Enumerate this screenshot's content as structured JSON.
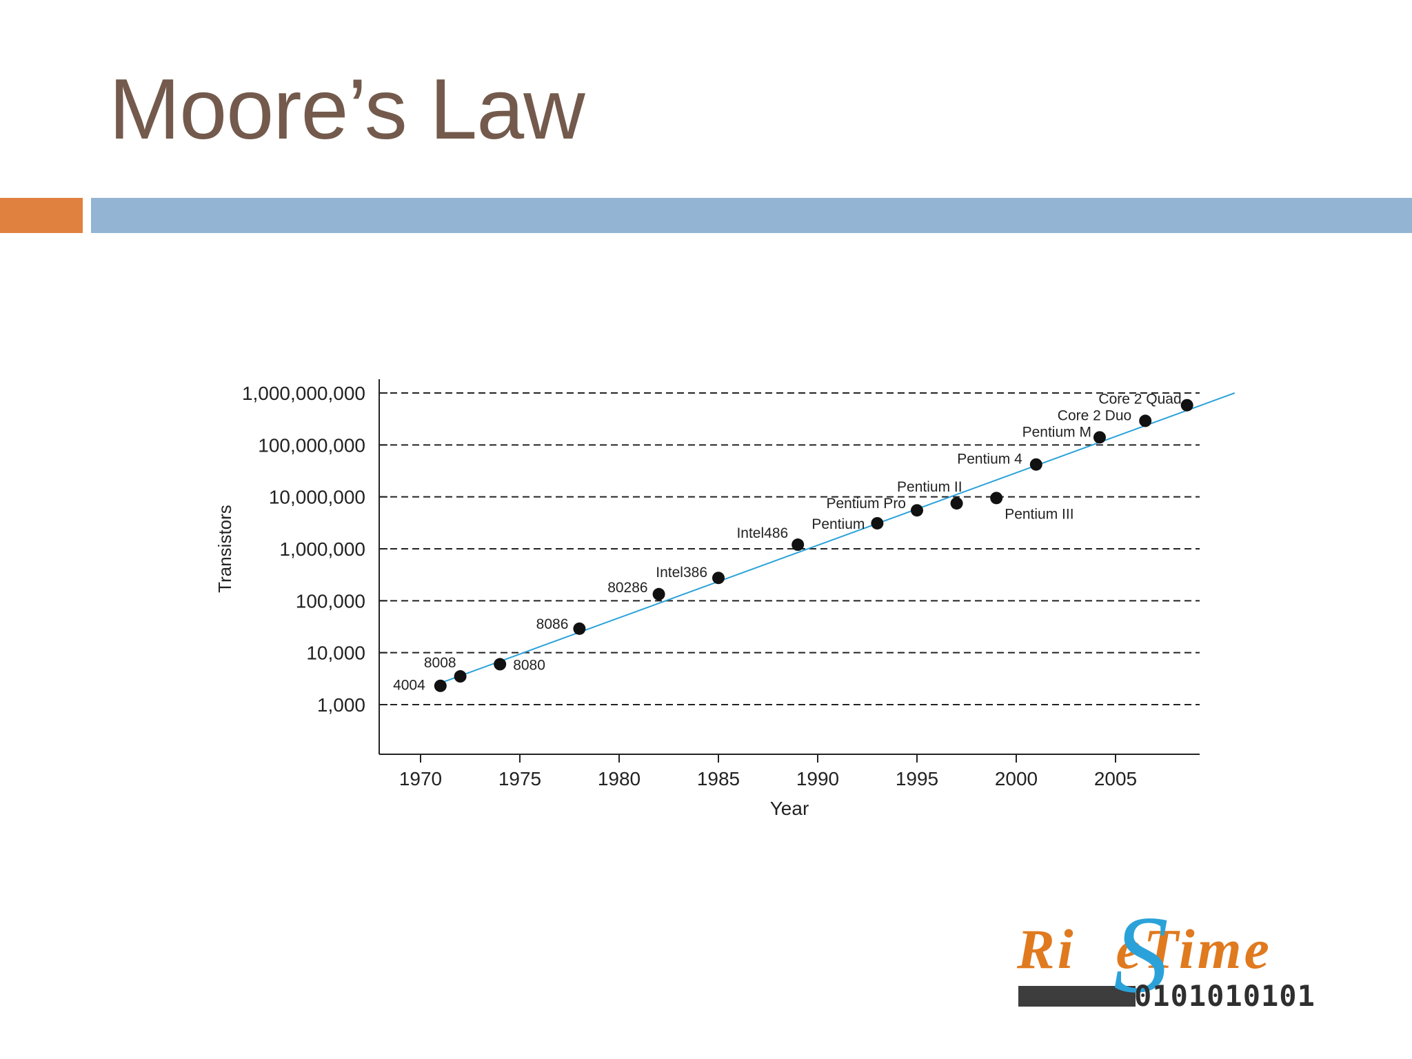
{
  "slide": {
    "title": "Moore’s Law",
    "accent_colors": {
      "orange": "#e08140",
      "blue": "#93b5d3",
      "title": "#735a4c"
    }
  },
  "chart_data": {
    "type": "scatter",
    "title": "",
    "xlabel": "Year",
    "ylabel": "Transistors",
    "y_scale": "log",
    "xlim": [
      1968,
      2009
    ],
    "ylim": [
      1000,
      1000000000
    ],
    "x_ticks": [
      1970,
      1975,
      1980,
      1985,
      1990,
      1995,
      2000,
      2005
    ],
    "x_tick_labels": [
      "1970",
      "1975",
      "1980",
      "1985",
      "1990",
      "1995",
      "2000",
      "2005"
    ],
    "y_ticks": [
      1000,
      10000,
      100000,
      1000000,
      10000000,
      100000000,
      1000000000
    ],
    "y_tick_labels": [
      "1,000",
      "10,000",
      "100,000",
      "1,000,000",
      "10,000,000",
      "100,000,000",
      "1,000,000,000"
    ],
    "grid": "horizontal-dashed",
    "trendline": {
      "color": "#2aa2d9",
      "from": {
        "x": 1971,
        "y": 2600
      },
      "to": {
        "x": 2011,
        "y": 1000000000
      }
    },
    "points": [
      {
        "label": "4004",
        "x": 1971,
        "y": 2300
      },
      {
        "label": "8008",
        "x": 1972,
        "y": 3500
      },
      {
        "label": "8080",
        "x": 1974,
        "y": 6000
      },
      {
        "label": "8086",
        "x": 1978,
        "y": 29000
      },
      {
        "label": "80286",
        "x": 1982,
        "y": 134000
      },
      {
        "label": "Intel386",
        "x": 1985,
        "y": 275000
      },
      {
        "label": "Intel486",
        "x": 1989,
        "y": 1200000
      },
      {
        "label": "Pentium",
        "x": 1993,
        "y": 3100000
      },
      {
        "label": "Pentium Pro",
        "x": 1995,
        "y": 5500000
      },
      {
        "label": "Pentium II",
        "x": 1997,
        "y": 7500000
      },
      {
        "label": "Pentium III",
        "x": 1999,
        "y": 9500000
      },
      {
        "label": "Pentium 4",
        "x": 2001,
        "y": 42000000
      },
      {
        "label": "Pentium M",
        "x": 2004.2,
        "y": 140000000
      },
      {
        "label": "Core 2 Duo",
        "x": 2006.5,
        "y": 291000000
      },
      {
        "label": "Core 2 Quad",
        "x": 2008.6,
        "y": 582000000
      }
    ]
  },
  "logo": {
    "word": "RiseTime",
    "word_start": "Ri",
    "word_s": "S",
    "word_end": "eTime",
    "binary": "0101010101",
    "colors": {
      "word": "#e07a1f",
      "s": "#2aa2d9",
      "binary": "#2f2f2f"
    }
  }
}
